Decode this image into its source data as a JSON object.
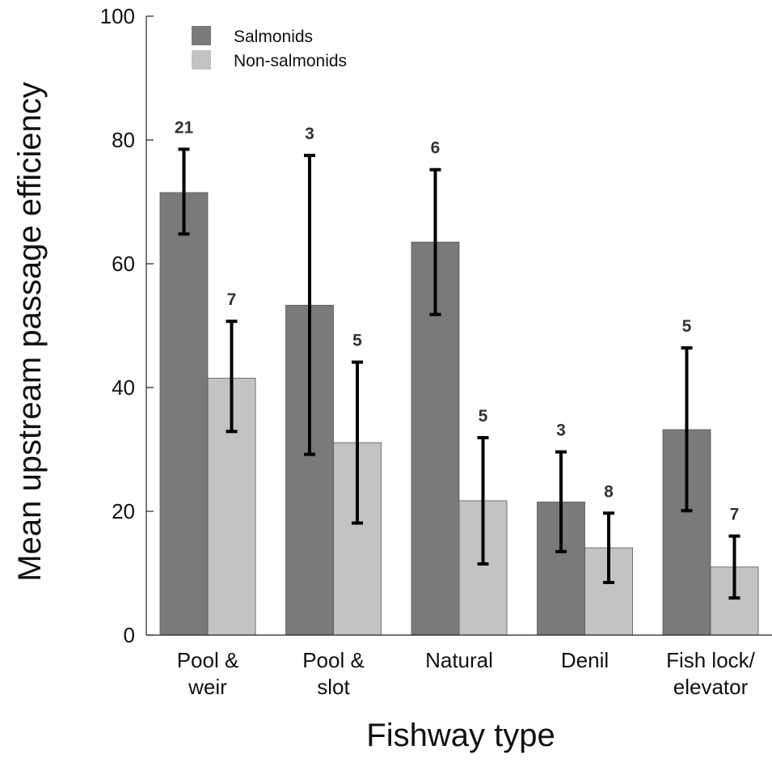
{
  "chart_data": {
    "type": "bar",
    "title": "",
    "xlabel": "Fishway type",
    "ylabel": "Mean upstream passage efficiency",
    "ylim": [
      0,
      100
    ],
    "yticks": [
      0,
      20,
      40,
      60,
      80,
      100
    ],
    "categories": [
      [
        "Pool &",
        "weir"
      ],
      [
        "Pool &",
        "slot"
      ],
      [
        "Natural"
      ],
      [
        "Denil"
      ],
      [
        "Fish lock/",
        "elevator"
      ]
    ],
    "legend_position": "top-left",
    "grid": false,
    "series": [
      {
        "name": "Salmonids",
        "color": "#7a7a7a",
        "values": [
          71.5,
          53.3,
          63.5,
          21.5,
          33.2
        ],
        "error_low": [
          64.8,
          29.2,
          51.8,
          13.5,
          20.1
        ],
        "error_high": [
          78.5,
          77.5,
          75.2,
          29.6,
          46.4
        ],
        "n": [
          "21",
          "3",
          "6",
          "3",
          "5"
        ]
      },
      {
        "name": "Non-salmonids",
        "color": "#c3c3c3",
        "values": [
          41.5,
          31.1,
          21.7,
          14.1,
          11.0
        ],
        "error_low": [
          32.9,
          18.1,
          11.5,
          8.5,
          6.0
        ],
        "error_high": [
          50.7,
          44.1,
          31.9,
          19.7,
          16.0
        ],
        "n": [
          "7",
          "5",
          "5",
          "8",
          "7"
        ]
      }
    ]
  }
}
